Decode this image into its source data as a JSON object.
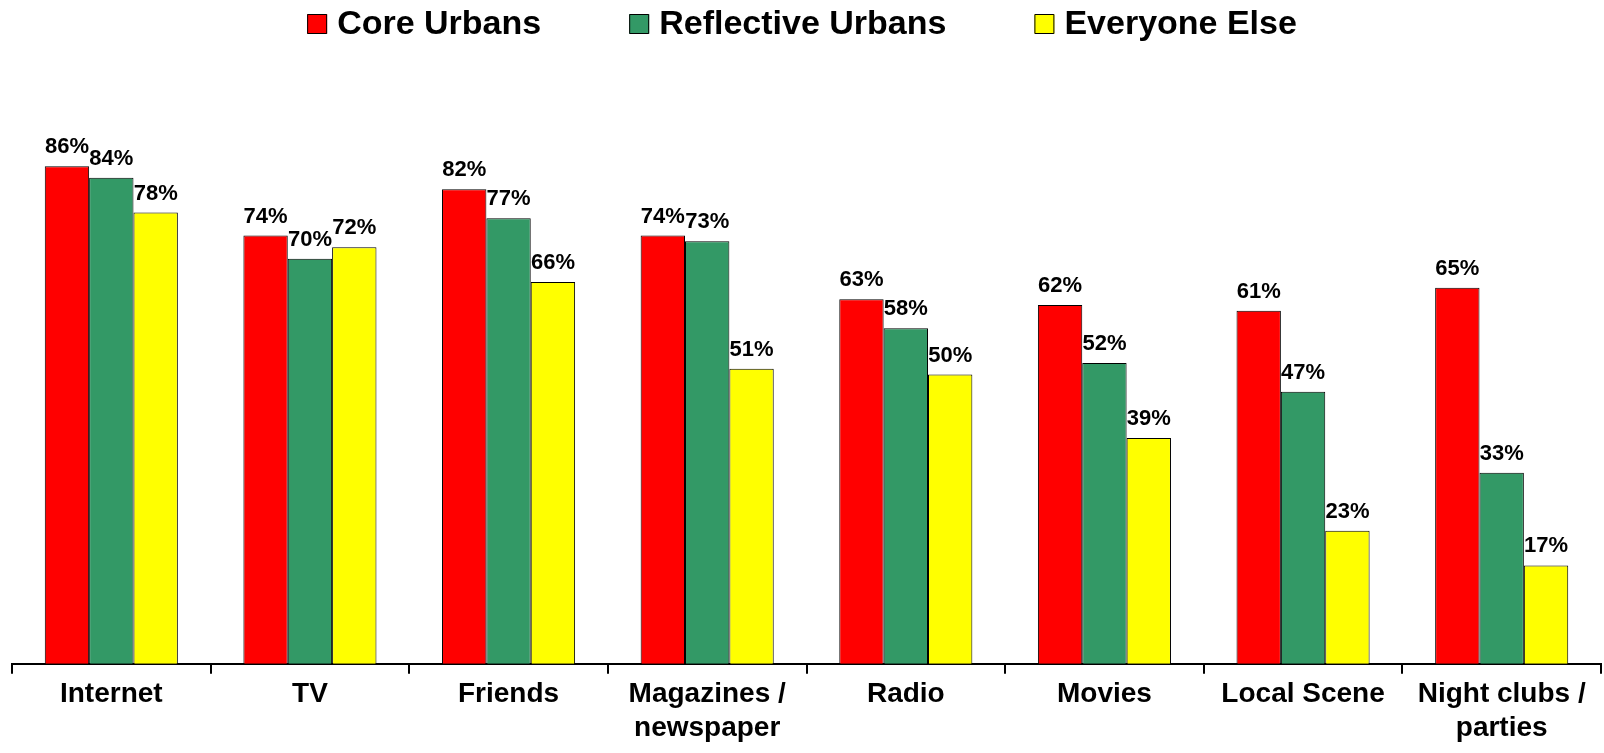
{
  "chart_data": {
    "type": "bar",
    "categories": [
      "Internet",
      "TV",
      "Friends",
      "Magazines / newspaper",
      "Radio",
      "Movies",
      "Local Scene",
      "Night clubs / parties"
    ],
    "series": [
      {
        "name": "Core Urbans",
        "color": "#ff0000",
        "values": [
          86,
          74,
          82,
          74,
          63,
          62,
          61,
          65
        ],
        "value_labels": [
          "86%",
          "74%",
          "82%",
          "74%",
          "63%",
          "62%",
          "61%",
          "65%"
        ]
      },
      {
        "name": "Reflective Urbans",
        "color": "#339966",
        "values": [
          84,
          70,
          77,
          73,
          58,
          52,
          47,
          33
        ],
        "value_labels": [
          "84%",
          "70%",
          "77%",
          "73%",
          "58%",
          "52%",
          "47%",
          "33%"
        ]
      },
      {
        "name": "Everyone Else",
        "color": "#ffff00",
        "values": [
          78,
          72,
          66,
          51,
          50,
          39,
          23,
          17
        ],
        "value_labels": [
          "78%",
          "72%",
          "66%",
          "51%",
          "50%",
          "39%",
          "23%",
          "17%"
        ]
      }
    ],
    "legend": "top",
    "tick_labels": "x"
  }
}
